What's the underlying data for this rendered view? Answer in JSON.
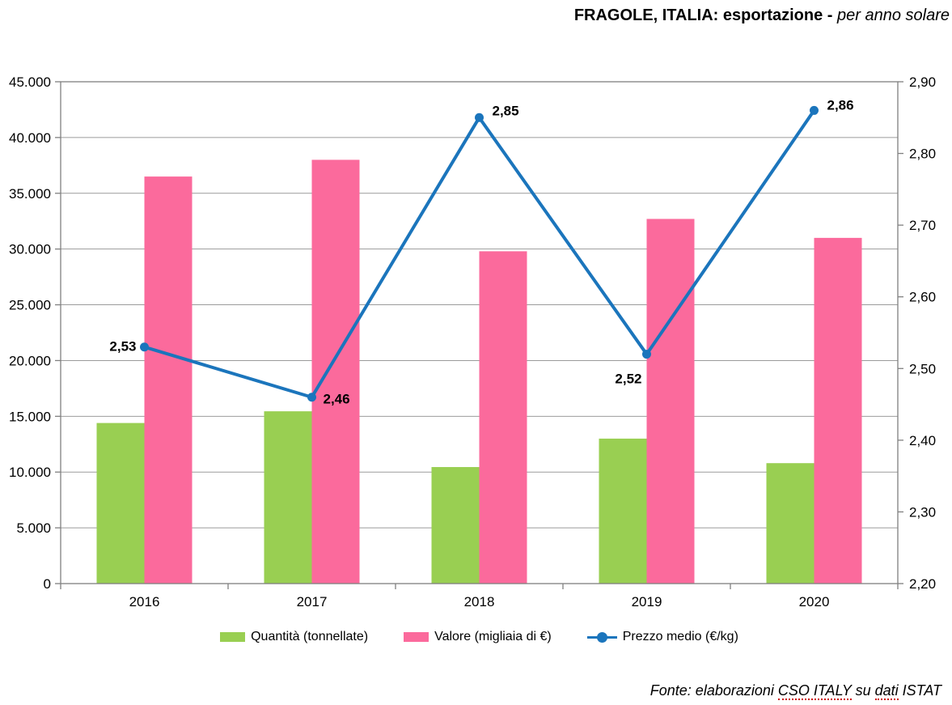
{
  "title": {
    "main": "FRAGOLE, ITALIA: esportazione - ",
    "sub": "per anno solare"
  },
  "source": {
    "prefix": "Fonte: elaborazioni ",
    "org": "CSO ITALY",
    "mid": " su ",
    "word": "dati",
    "suffix": " ISTAT"
  },
  "chart_data": {
    "type": "bar+line combo",
    "categories": [
      "2016",
      "2017",
      "2018",
      "2019",
      "2020"
    ],
    "series": [
      {
        "name": "Quantità (tonnellate)",
        "type": "bar",
        "axis": "left",
        "color": "#99CF52",
        "values": [
          14400,
          15450,
          10450,
          13000,
          10800
        ]
      },
      {
        "name": "Valore (migliaia di €)",
        "type": "bar",
        "axis": "left",
        "color": "#FB6A9C",
        "values": [
          36500,
          38000,
          29800,
          32700,
          31000
        ]
      },
      {
        "name": "Prezzo medio (€/kg)",
        "type": "line",
        "axis": "right",
        "color": "#1B75BC",
        "values": [
          2.53,
          2.46,
          2.85,
          2.52,
          2.86
        ],
        "labels": [
          "2,53",
          "2,46",
          "2,85",
          "2,52",
          "2,86"
        ],
        "label_anchors": [
          "end",
          "start",
          "start",
          "end",
          "start"
        ],
        "label_offsets": [
          [
            -10,
            5
          ],
          [
            14,
            8
          ],
          [
            16,
            -3
          ],
          [
            -6,
            36
          ],
          [
            16,
            -1
          ]
        ]
      }
    ],
    "left_axis": {
      "min": 0,
      "max": 45000,
      "step": 5000,
      "tick_labels": [
        "0",
        "5.000",
        "10.000",
        "15.000",
        "20.000",
        "25.000",
        "30.000",
        "35.000",
        "40.000",
        "45.000"
      ]
    },
    "right_axis": {
      "min": 2.2,
      "max": 2.9,
      "step": 0.1,
      "tick_labels": [
        "2,20",
        "2,30",
        "2,40",
        "2,50",
        "2,60",
        "2,70",
        "2,80",
        "2,90"
      ]
    },
    "grid": true,
    "legend_position": "bottom",
    "style": {
      "grid_color": "#9B9B9B",
      "axis_color": "#808080"
    }
  }
}
